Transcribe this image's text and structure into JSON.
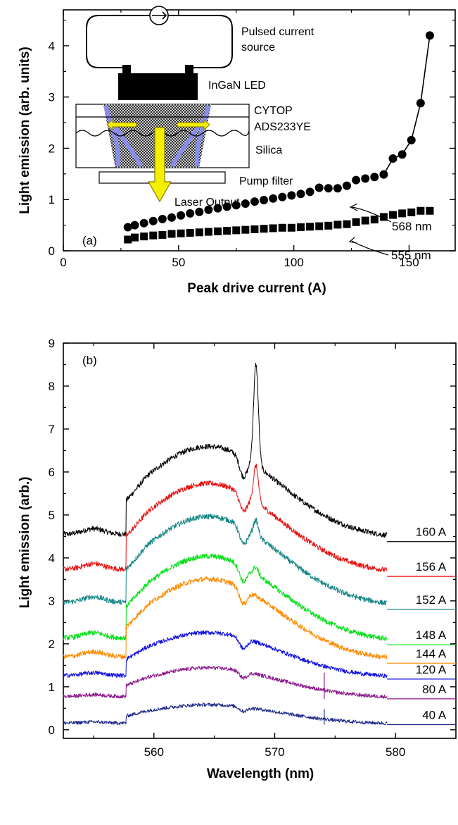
{
  "chart_data": [
    {
      "type": "scatter",
      "panel_label": "(a)",
      "xlabel": "Peak drive current (A)",
      "ylabel": "Light emission (arb. units)",
      "xlim": [
        0,
        170
      ],
      "ylim": [
        0,
        4.7
      ],
      "x_ticks": [
        "0",
        "50",
        "100",
        "150"
      ],
      "y_ticks": [
        "0",
        "1",
        "2",
        "3",
        "4"
      ],
      "grid": false,
      "series": [
        {
          "name": "568 nm",
          "marker": "circle",
          "connected_tail": true,
          "x": [
            28,
            31,
            35,
            39,
            43,
            47,
            51,
            55,
            59,
            63,
            67,
            71,
            75,
            79,
            83,
            87,
            91,
            95,
            99,
            103,
            107,
            111,
            115,
            119,
            123,
            127,
            131,
            135,
            139,
            143,
            147,
            151,
            155,
            159
          ],
          "y": [
            0.46,
            0.5,
            0.54,
            0.58,
            0.62,
            0.65,
            0.69,
            0.73,
            0.76,
            0.8,
            0.83,
            0.86,
            0.89,
            0.92,
            0.96,
            0.99,
            1.02,
            1.05,
            1.08,
            1.11,
            1.15,
            1.23,
            1.22,
            1.22,
            1.27,
            1.38,
            1.41,
            1.44,
            1.49,
            1.8,
            1.88,
            2.16,
            2.88,
            4.2
          ]
        },
        {
          "name": "555 nm",
          "marker": "square",
          "x": [
            28,
            31,
            35,
            39,
            43,
            47,
            51,
            55,
            59,
            63,
            67,
            71,
            75,
            79,
            83,
            87,
            91,
            95,
            99,
            103,
            107,
            111,
            115,
            119,
            123,
            127,
            131,
            135,
            139,
            143,
            147,
            151,
            155,
            159
          ],
          "y": [
            0.22,
            0.26,
            0.28,
            0.3,
            0.31,
            0.33,
            0.34,
            0.35,
            0.36,
            0.37,
            0.38,
            0.39,
            0.4,
            0.41,
            0.42,
            0.43,
            0.44,
            0.45,
            0.45,
            0.46,
            0.47,
            0.48,
            0.49,
            0.51,
            0.52,
            0.56,
            0.59,
            0.61,
            0.66,
            0.7,
            0.73,
            0.75,
            0.78,
            0.78
          ]
        }
      ],
      "annotations": [
        "568 nm",
        "555 nm"
      ],
      "inset": {
        "labels": [
          "Pulsed current",
          "source",
          "InGaN LED",
          "CYTOP",
          "ADS233YE",
          "Silica",
          "Pump filter",
          "Laser Output"
        ],
        "colors": {
          "led": "#000000",
          "arrow_fill": "#f4ef00",
          "arrow_stroke": "#8a7a00",
          "light": "#8a8fff",
          "chip": "#7d7d7d"
        }
      }
    },
    {
      "type": "line",
      "panel_label": "(b)",
      "xlabel": "Wavelength (nm)",
      "ylabel": "Light emission (arb.)",
      "xlim": [
        552.5,
        585
      ],
      "ylim": [
        -0.2,
        9
      ],
      "x_ticks": [
        "560",
        "570",
        "580"
      ],
      "y_ticks": [
        "0",
        "1",
        "2",
        "3",
        "4",
        "5",
        "6",
        "7",
        "8",
        "9"
      ],
      "grid": false,
      "x_range_measured": [
        552.5,
        579.3
      ],
      "series": [
        {
          "name": "160 A",
          "color": "#000000",
          "offset": 4.38,
          "amp": 2.15,
          "pit": 0.45,
          "peak": 2.35
        },
        {
          "name": "156 A",
          "color": "#e81010",
          "offset": 3.57,
          "amp": 2.1,
          "pit": 0.4,
          "peak": 0.85
        },
        {
          "name": "152 A",
          "color": "#138585",
          "offset": 2.8,
          "amp": 2.1,
          "pit": 0.4,
          "peak": 0.35
        },
        {
          "name": "148 A",
          "color": "#00e016",
          "offset": 1.98,
          "amp": 2.0,
          "pit": 0.35,
          "peak": 0.15
        },
        {
          "name": "144 A",
          "color": "#ff8a00",
          "offset": 1.55,
          "amp": 1.9,
          "pit": 0.35,
          "peak": 0.0
        },
        {
          "name": "120 A",
          "color": "#1010e0",
          "offset": 1.18,
          "amp": 1.05,
          "pit": 0.25,
          "peak": 0.0
        },
        {
          "name": "80 A",
          "color": "#8b1a8b",
          "offset": 0.72,
          "amp": 0.7,
          "pit": 0.15,
          "peak": 0.0
        },
        {
          "name": "40 A",
          "color": "#1e2a8a",
          "offset": 0.12,
          "amp": 0.45,
          "pit": 0.1,
          "peak": 0.0
        }
      ]
    }
  ]
}
